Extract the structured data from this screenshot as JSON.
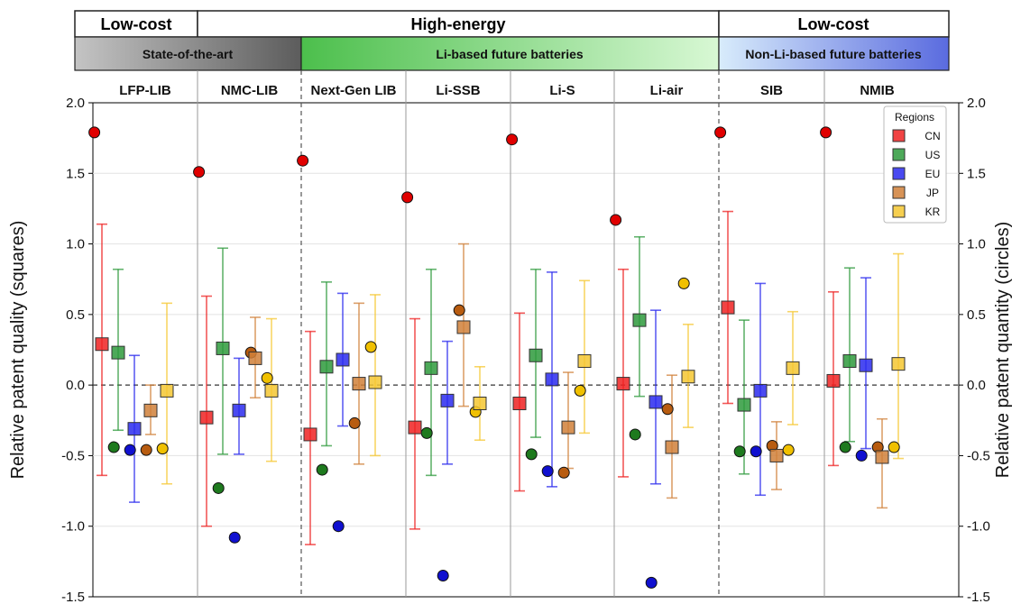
{
  "colors": {
    "CN": "#ee2222",
    "US": "#2e9a3c",
    "EU": "#2a2aee",
    "JP": "#d0803a",
    "KR": "#f5c731",
    "dot_CN": "#e00000",
    "dot_US": "#1e7a1e",
    "dot_EU": "#1010d0",
    "dot_JP": "#b85c10",
    "dot_KR": "#f0c000"
  },
  "header": {
    "top_groups": [
      {
        "label": "Low-cost"
      },
      {
        "label": "High-energy"
      },
      {
        "label": "Low-cost"
      }
    ],
    "sub_groups": [
      {
        "label": "State-of-the-art"
      },
      {
        "label": "Li-based future batteries"
      },
      {
        "label": "Non-Li-based future batteries"
      }
    ]
  },
  "chart_data": {
    "type": "scatter",
    "categories": [
      "LFP-LIB",
      "NMC-LIB",
      "Next-Gen LIB",
      "Li-SSB",
      "Li-S",
      "Li-air",
      "SIB",
      "NMIB"
    ],
    "regions": [
      "CN",
      "US",
      "EU",
      "JP",
      "KR"
    ],
    "ylabel_left": "Relative patent quality (squares)",
    "ylabel_right": "Relative patent quantity (circles)",
    "ylim": [
      -1.5,
      2.0
    ],
    "yticks": [
      "-1.5",
      "-1.0",
      "-0.5",
      "0.0",
      "0.5",
      "1.0",
      "1.5",
      "2.0"
    ],
    "legend": {
      "title": "Regions",
      "position": "top-right"
    },
    "quality_squares": [
      {
        "CN": 0.29,
        "US": 0.23,
        "EU": -0.31,
        "JP": -0.18,
        "KR": -0.04
      },
      {
        "CN": -0.23,
        "US": 0.26,
        "EU": -0.18,
        "JP": 0.19,
        "KR": -0.04
      },
      {
        "CN": -0.35,
        "US": 0.13,
        "EU": 0.18,
        "JP": 0.01,
        "KR": 0.02
      },
      {
        "CN": -0.3,
        "US": 0.12,
        "EU": -0.11,
        "JP": 0.41,
        "KR": -0.13
      },
      {
        "CN": -0.13,
        "US": 0.21,
        "EU": 0.04,
        "JP": -0.3,
        "KR": 0.17
      },
      {
        "CN": 0.01,
        "US": 0.46,
        "EU": -0.12,
        "JP": -0.44,
        "KR": 0.06
      },
      {
        "CN": 0.55,
        "US": -0.14,
        "EU": -0.04,
        "JP": -0.5,
        "KR": 0.12
      },
      {
        "CN": 0.03,
        "US": 0.17,
        "EU": 0.14,
        "JP": -0.51,
        "KR": 0.15
      }
    ],
    "quality_error_bars": [
      {
        "CN": [
          -0.64,
          1.14
        ],
        "US": [
          -0.32,
          0.82
        ],
        "EU": [
          -0.83,
          0.21
        ],
        "JP": [
          -0.35,
          0.0
        ],
        "KR": [
          -0.7,
          0.58
        ]
      },
      {
        "CN": [
          -1.0,
          0.63
        ],
        "US": [
          -0.49,
          0.97
        ],
        "EU": [
          -0.49,
          0.19
        ],
        "JP": [
          -0.09,
          0.48
        ],
        "KR": [
          -0.54,
          0.47
        ]
      },
      {
        "CN": [
          -1.13,
          0.38
        ],
        "US": [
          -0.43,
          0.73
        ],
        "EU": [
          -0.29,
          0.65
        ],
        "JP": [
          -0.56,
          0.58
        ],
        "KR": [
          -0.5,
          0.64
        ]
      },
      {
        "CN": [
          -1.02,
          0.47
        ],
        "US": [
          -0.64,
          0.82
        ],
        "EU": [
          -0.56,
          0.31
        ],
        "JP": [
          -0.15,
          1.0
        ],
        "KR": [
          -0.39,
          0.13
        ]
      },
      {
        "CN": [
          -0.75,
          0.51
        ],
        "US": [
          -0.37,
          0.82
        ],
        "EU": [
          -0.72,
          0.8
        ],
        "JP": [
          -0.59,
          0.09
        ],
        "KR": [
          -0.34,
          0.74
        ]
      },
      {
        "CN": [
          -0.65,
          0.82
        ],
        "US": [
          -0.08,
          1.05
        ],
        "EU": [
          -0.7,
          0.53
        ],
        "JP": [
          -0.8,
          0.07
        ],
        "KR": [
          -0.3,
          0.43
        ]
      },
      {
        "CN": [
          -0.13,
          1.23
        ],
        "US": [
          -0.63,
          0.46
        ],
        "EU": [
          -0.78,
          0.72
        ],
        "JP": [
          -0.74,
          -0.26
        ],
        "KR": [
          -0.28,
          0.52
        ]
      },
      {
        "CN": [
          -0.57,
          0.66
        ],
        "US": [
          -0.4,
          0.83
        ],
        "EU": [
          -0.45,
          0.76
        ],
        "JP": [
          -0.87,
          -0.24
        ],
        "KR": [
          -0.52,
          0.93
        ]
      }
    ],
    "quantity_circles": [
      {
        "CN": 1.79,
        "US": -0.44,
        "EU": -0.46,
        "JP": -0.46,
        "KR": -0.45
      },
      {
        "CN": 1.51,
        "US": -0.73,
        "EU": -1.08,
        "JP": 0.23,
        "KR": 0.05
      },
      {
        "CN": 1.59,
        "US": -0.6,
        "EU": -1.0,
        "JP": -0.27,
        "KR": 0.27
      },
      {
        "CN": 1.33,
        "US": -0.34,
        "EU": -1.35,
        "JP": 0.53,
        "KR": -0.19
      },
      {
        "CN": 1.74,
        "US": -0.49,
        "EU": -0.61,
        "JP": -0.62,
        "KR": -0.04
      },
      {
        "CN": 1.17,
        "US": -0.35,
        "EU": -1.4,
        "JP": -0.17,
        "KR": 0.72
      },
      {
        "CN": 1.79,
        "US": -0.47,
        "EU": -0.47,
        "JP": -0.43,
        "KR": -0.46
      },
      {
        "CN": 1.79,
        "US": -0.44,
        "EU": -0.5,
        "JP": -0.44,
        "KR": -0.44
      }
    ],
    "grid": "horizontal",
    "reference_line": 0.0
  }
}
